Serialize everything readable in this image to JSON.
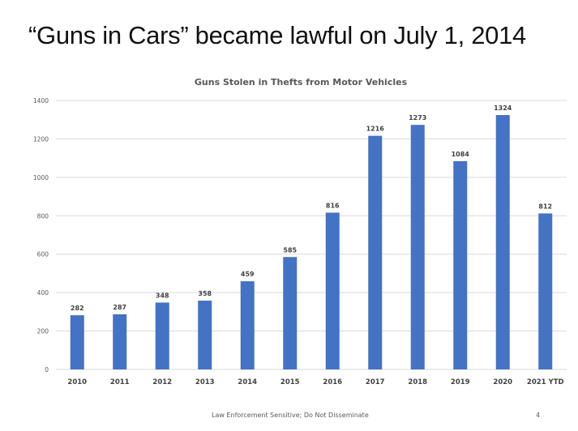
{
  "slide": {
    "title": "“Guns in Cars” became lawful on July 1, 2014",
    "footer": "Law Enforcement Sensitive; Do Not Disseminate",
    "page_number": "4"
  },
  "chart_data": {
    "type": "bar",
    "title": "Guns Stolen in Thefts from Motor Vehicles",
    "xlabel": "",
    "ylabel": "",
    "categories": [
      "2010",
      "2011",
      "2012",
      "2013",
      "2014",
      "2015",
      "2016",
      "2017",
      "2018",
      "2019",
      "2020",
      "2021 YTD"
    ],
    "values": [
      282,
      287,
      348,
      358,
      459,
      585,
      816,
      1216,
      1273,
      1084,
      1324,
      812
    ],
    "ylim": [
      0,
      1400
    ],
    "yticks": [
      0,
      200,
      400,
      600,
      800,
      1000,
      1200,
      1400
    ],
    "grid": true,
    "legend": "none",
    "data_labels": true,
    "bar_color": "#4472C4"
  }
}
